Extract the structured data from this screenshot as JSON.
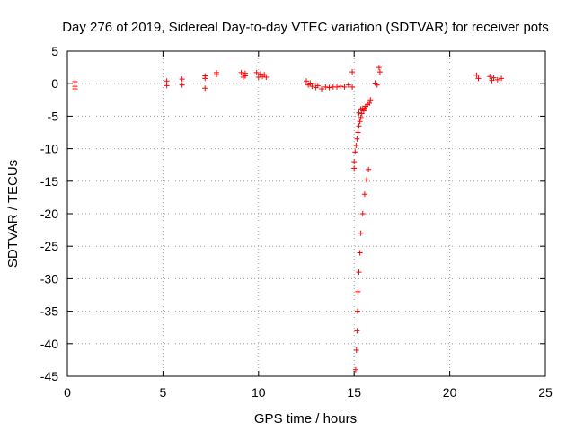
{
  "chart_data": {
    "type": "scatter",
    "title": "Day 276 of 2019, Sidereal Day-to-day VTEC variation (SDTVAR) for receiver pots",
    "xlabel": "GPS time / hours",
    "ylabel": "SDTVAR / TECUs",
    "xlim": [
      0,
      25
    ],
    "ylim": [
      -45,
      5
    ],
    "xticks": [
      0,
      5,
      10,
      15,
      20,
      25
    ],
    "xtick_labels": [
      "0",
      "5",
      "10",
      "15",
      "20",
      "25"
    ],
    "yticks": [
      5,
      0,
      -5,
      -10,
      -15,
      -20,
      -25,
      -30,
      -35,
      -40,
      -45
    ],
    "ytick_labels": [
      "5",
      "0",
      "-5",
      "-10",
      "-15",
      "-20",
      "-25",
      "-30",
      "-35",
      "-40",
      "-45"
    ],
    "grid": true,
    "marker": "+",
    "series": [
      {
        "name": "pots",
        "color": "#ff0000",
        "points": [
          [
            0.4,
            0.3
          ],
          [
            0.4,
            -0.4
          ],
          [
            0.4,
            -0.8
          ],
          [
            5.2,
            0.4
          ],
          [
            5.2,
            -0.3
          ],
          [
            6.0,
            0.7
          ],
          [
            6.0,
            -0.2
          ],
          [
            7.2,
            1.2
          ],
          [
            7.2,
            0.8
          ],
          [
            7.2,
            -0.7
          ],
          [
            7.8,
            1.7
          ],
          [
            7.8,
            1.4
          ],
          [
            9.1,
            1.7
          ],
          [
            9.2,
            1.3
          ],
          [
            9.2,
            1.0
          ],
          [
            9.3,
            1.6
          ],
          [
            9.3,
            1.2
          ],
          [
            9.9,
            1.7
          ],
          [
            10.0,
            1.0
          ],
          [
            10.1,
            1.5
          ],
          [
            10.2,
            1.1
          ],
          [
            10.3,
            1.4
          ],
          [
            10.4,
            1.0
          ],
          [
            12.5,
            0.4
          ],
          [
            12.6,
            -0.2
          ],
          [
            12.7,
            0.1
          ],
          [
            12.8,
            -0.4
          ],
          [
            12.9,
            0.0
          ],
          [
            13.0,
            -0.6
          ],
          [
            13.1,
            -0.3
          ],
          [
            13.3,
            -0.8
          ],
          [
            13.5,
            -0.5
          ],
          [
            13.7,
            -0.6
          ],
          [
            13.9,
            -0.5
          ],
          [
            14.1,
            -0.5
          ],
          [
            14.3,
            -0.4
          ],
          [
            14.5,
            -0.5
          ],
          [
            14.7,
            -0.2
          ],
          [
            14.9,
            1.8
          ],
          [
            14.9,
            -0.5
          ],
          [
            15.0,
            -13.0
          ],
          [
            15.0,
            -12.0
          ],
          [
            15.05,
            -10.5
          ],
          [
            15.1,
            -9.5
          ],
          [
            15.15,
            -8.5
          ],
          [
            15.2,
            -7.5
          ],
          [
            15.25,
            -6.5
          ],
          [
            15.3,
            -5.8
          ],
          [
            15.35,
            -5.2
          ],
          [
            15.4,
            -4.6
          ],
          [
            15.5,
            -4.2
          ],
          [
            15.55,
            -3.8
          ],
          [
            15.6,
            -3.5
          ],
          [
            15.7,
            -3.2
          ],
          [
            15.8,
            -3.0
          ],
          [
            15.85,
            -2.5
          ],
          [
            15.25,
            -4.5
          ],
          [
            15.45,
            -3.8
          ],
          [
            15.35,
            -3.9
          ],
          [
            15.08,
            -44.0
          ],
          [
            15.12,
            -41.0
          ],
          [
            15.15,
            -38.0
          ],
          [
            15.18,
            -35.0
          ],
          [
            15.2,
            -32.0
          ],
          [
            15.25,
            -29.0
          ],
          [
            15.3,
            -26.0
          ],
          [
            15.35,
            -23.0
          ],
          [
            15.45,
            -20.0
          ],
          [
            15.55,
            -17.0
          ],
          [
            15.65,
            -14.8
          ],
          [
            15.75,
            -13.2
          ],
          [
            16.1,
            0.1
          ],
          [
            16.2,
            -0.2
          ],
          [
            16.3,
            2.5
          ],
          [
            16.35,
            1.8
          ],
          [
            21.4,
            1.3
          ],
          [
            21.5,
            0.8
          ],
          [
            22.1,
            1.1
          ],
          [
            22.2,
            0.5
          ],
          [
            22.3,
            0.9
          ],
          [
            22.5,
            0.6
          ],
          [
            22.7,
            0.8
          ]
        ]
      }
    ]
  }
}
